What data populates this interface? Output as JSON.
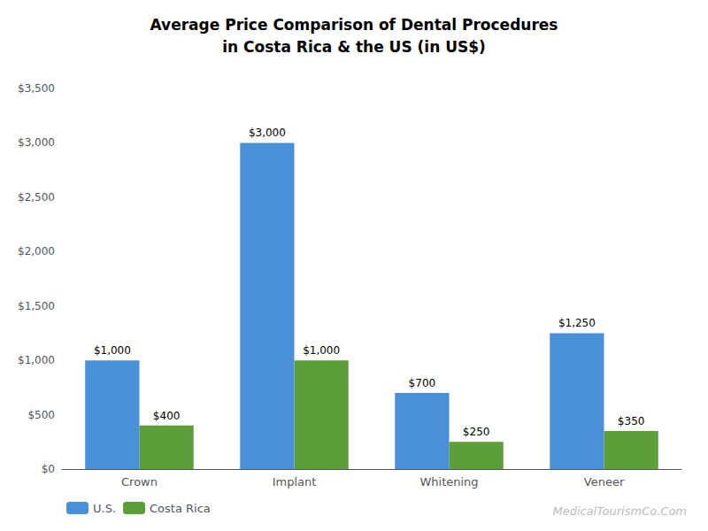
{
  "chart_data": {
    "type": "bar",
    "title": "Average Price Comparison of Dental Procedures",
    "subtitle": "in Costa Rica & the US (in US$)",
    "categories": [
      "Crown",
      "Implant",
      "Whitening",
      "Veneer"
    ],
    "series": [
      {
        "name": "U.S.",
        "color": "#4A90D9",
        "values": [
          1000,
          3000,
          700,
          1250
        ],
        "value_labels": [
          "$1,000",
          "$3,000",
          "$700",
          "$1,250"
        ]
      },
      {
        "name": "Costa Rica",
        "color": "#5B9E3A",
        "values": [
          400,
          1000,
          250,
          350
        ],
        "value_labels": [
          "$400",
          "$1,000",
          "$250",
          "$350"
        ]
      }
    ],
    "ylim": [
      0,
      3500
    ],
    "yticks": [
      {
        "value": 0,
        "label": "$0"
      },
      {
        "value": 500,
        "label": "$500"
      },
      {
        "value": 1000,
        "label": "$1,000"
      },
      {
        "value": 1500,
        "label": "$1,500"
      },
      {
        "value": 2000,
        "label": "$2,000"
      },
      {
        "value": 2500,
        "label": "$2,500"
      },
      {
        "value": 3000,
        "label": "$3,000"
      },
      {
        "value": 3500,
        "label": "$3,500"
      }
    ],
    "grid": false,
    "legend": "lower left",
    "data_labels": true,
    "annotations": [
      "MedicalTourismCo.Com"
    ]
  }
}
